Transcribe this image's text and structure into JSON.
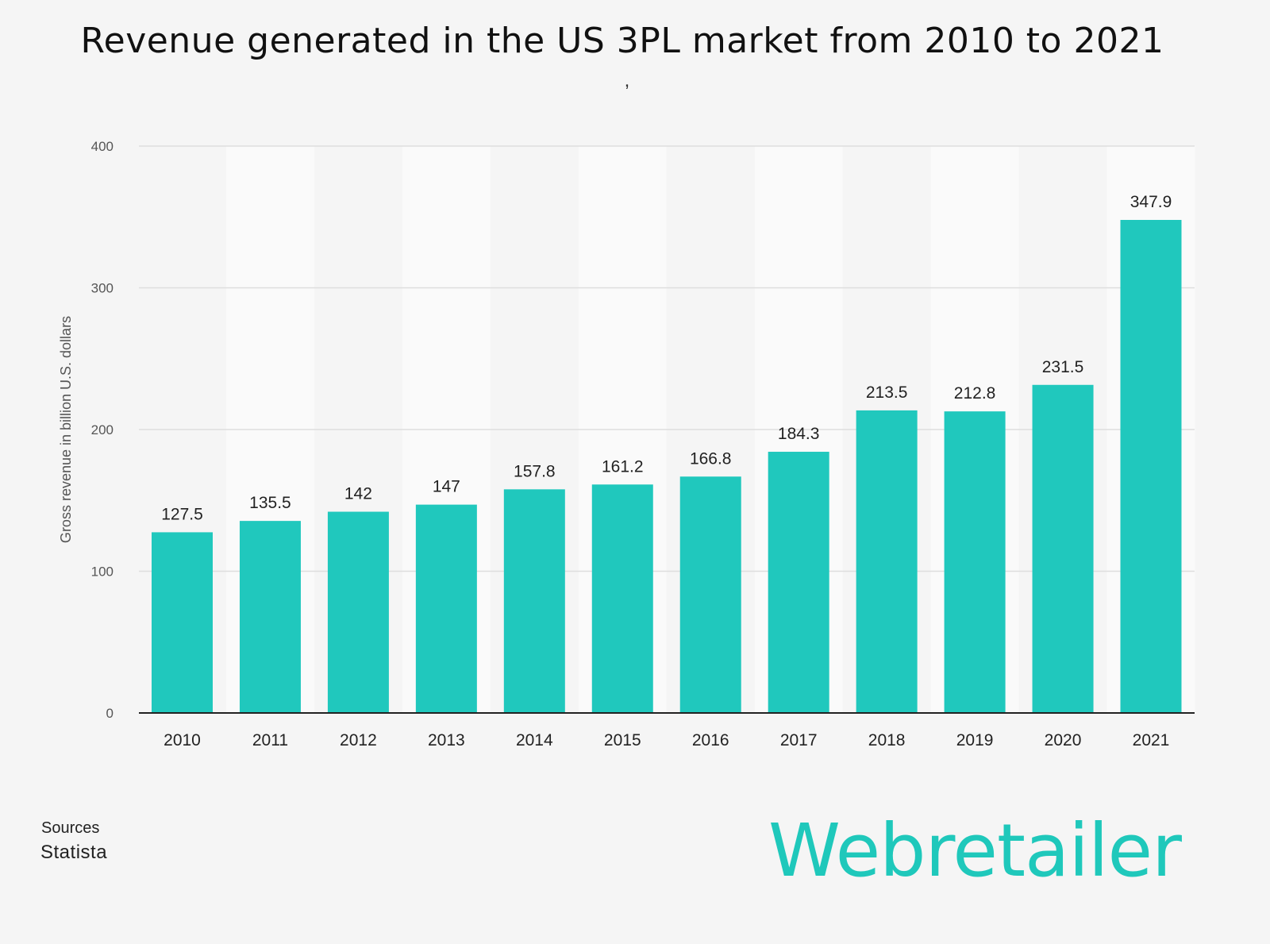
{
  "chart_data": {
    "type": "bar",
    "title": "Revenue generated in the US 3PL market from 2010 to 2021",
    "subtitle_clipped": ",",
    "xlabel": "",
    "ylabel": "Gross revenue in billion U.S. dollars",
    "ylim": [
      0,
      400
    ],
    "yticks": [
      "0",
      "100",
      "200",
      "300",
      "400"
    ],
    "ytick_values": [
      0,
      100,
      200,
      300,
      400
    ],
    "grid": true,
    "categories": [
      "2010",
      "2011",
      "2012",
      "2013",
      "2014",
      "2015",
      "2016",
      "2017",
      "2018",
      "2019",
      "2020",
      "2021"
    ],
    "values": [
      127.5,
      135.5,
      142,
      147,
      157.8,
      161.2,
      166.8,
      184.3,
      213.5,
      212.8,
      231.5,
      347.9
    ],
    "value_labels": [
      "127.5",
      "135.5",
      "142",
      "147",
      "157.8",
      "161.2",
      "166.8",
      "184.3",
      "213.5",
      "212.8",
      "231.5",
      "347.9"
    ],
    "bar_color": "#20c8bd",
    "legend": null
  },
  "footer": {
    "sources_label": "Sources",
    "sources_value": "Statista",
    "brand_logo": "Webretailer",
    "brand_color": "#1fc8bb"
  }
}
